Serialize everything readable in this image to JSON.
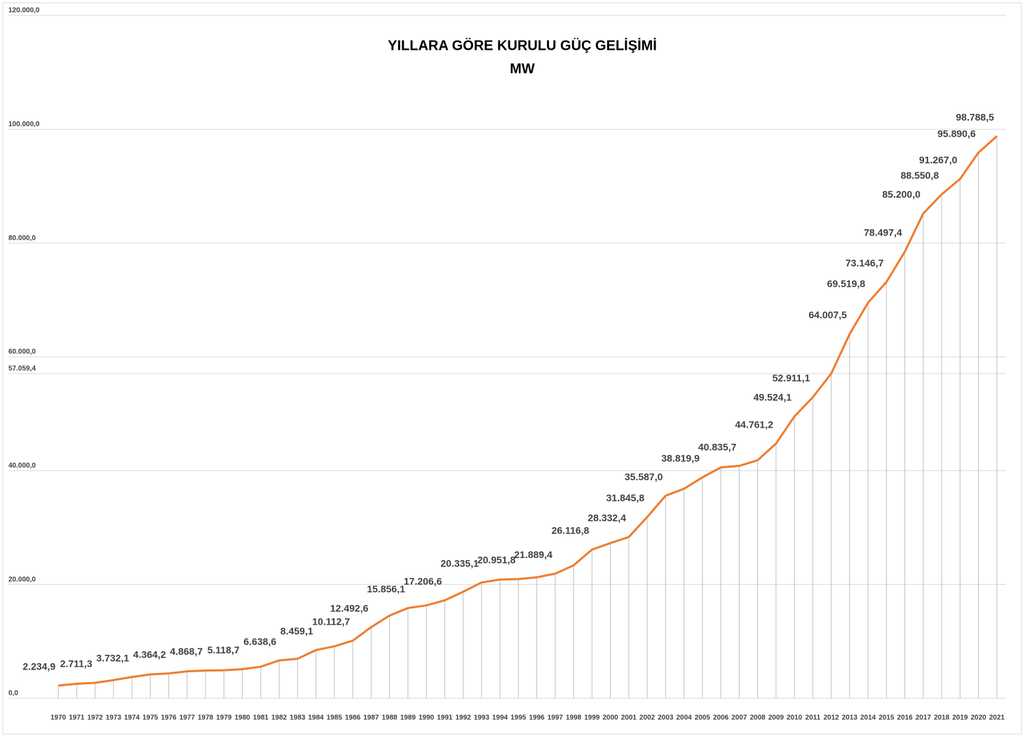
{
  "chart_data": {
    "type": "line",
    "title": "YILLARA GÖRE KURULU GÜÇ GELİŞİMİ",
    "subtitle": "MW",
    "categories": [
      "1970",
      "1971",
      "1972",
      "1973",
      "1974",
      "1975",
      "1976",
      "1977",
      "1978",
      "1979",
      "1980",
      "1981",
      "1982",
      "1983",
      "1984",
      "1985",
      "1986",
      "1987",
      "1988",
      "1989",
      "1990",
      "1991",
      "1992",
      "1993",
      "1994",
      "1995",
      "1996",
      "1997",
      "1998",
      "1999",
      "2000",
      "2001",
      "2002",
      "2003",
      "2004",
      "2005",
      "2006",
      "2007",
      "2008",
      "2009",
      "2010",
      "2011",
      "2012",
      "2013",
      "2014",
      "2015",
      "2016",
      "2017",
      "2018",
      "2019",
      "2020",
      "2021"
    ],
    "series": [
      {
        "name": "Kurulu Güç",
        "color": "#ed7d31",
        "values": [
          2234.9,
          2535.5,
          2711.3,
          3192.9,
          3732.1,
          4186.6,
          4364.2,
          4727.1,
          4868.7,
          4907.8,
          5118.7,
          5537.6,
          6638.6,
          6935.1,
          8459.1,
          9121.5,
          10112.7,
          12492.6,
          14520.9,
          15856.1,
          16317.6,
          17206.6,
          18716.1,
          20335.1,
          20859.8,
          20951.8,
          21249.4,
          21889.4,
          23354.0,
          26116.8,
          27264.1,
          28332.4,
          31845.8,
          35587.0,
          36824.0,
          38819.9,
          40564.8,
          40835.7,
          41817.2,
          44761.2,
          49524.1,
          52911.1,
          57059.4,
          64007.5,
          69519.8,
          73146.7,
          78497.4,
          85200.0,
          88550.8,
          91267.0,
          95890.6,
          98788.5
        ],
        "value_labels": [
          "2.234,9",
          null,
          "2.711,3",
          null,
          "3.732,1",
          null,
          "4.364,2",
          null,
          "4.868,7",
          null,
          "5.118,7",
          null,
          "6.638,6",
          null,
          "8.459,1",
          null,
          "10.112,7",
          "12.492,6",
          null,
          "15.856,1",
          null,
          "17.206,6",
          null,
          "20.335,1",
          null,
          "20.951,8",
          null,
          "21.889,4",
          null,
          "26.116,8",
          null,
          "28.332,4",
          "31.845,8",
          "35.587,0",
          null,
          "38.819,9",
          null,
          "40.835,7",
          null,
          "44.761,2",
          "49.524,1",
          "52.911,1",
          null,
          "64.007,5",
          "69.519,8",
          "73.146,7",
          "78.497,4",
          "85.200,0",
          "88.550,8",
          "91.267,0",
          "95.890,6",
          "98.788,5"
        ]
      }
    ],
    "ylim": [
      0,
      120000
    ],
    "yticks": [
      {
        "value": 0,
        "label": "0,0"
      },
      {
        "value": 20000,
        "label": "20.000,0"
      },
      {
        "value": 40000,
        "label": "40.000,0"
      },
      {
        "value": 57059.4,
        "label": "57.059,4"
      },
      {
        "value": 60000,
        "label": "60.000,0"
      },
      {
        "value": 80000,
        "label": "80.000,0"
      },
      {
        "value": 100000,
        "label": "100.000,0"
      },
      {
        "value": 120000,
        "label": "120.000,0"
      }
    ],
    "grid": true
  }
}
